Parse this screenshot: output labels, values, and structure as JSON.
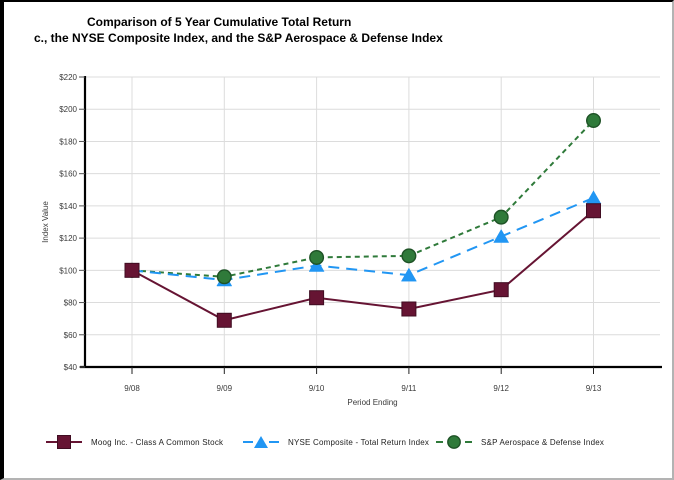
{
  "page": {
    "title_line1": "Comparison of 5 Year Cumulative Total Return",
    "title_line2": "c., the NYSE Composite Index, and the S&P Aerospace & Defense Index"
  },
  "chart_data": {
    "type": "line",
    "title": "Comparison of 5 Year Cumulative Total Return",
    "subtitle": "c., the NYSE Composite Index, and the S&P Aerospace & Defense Index",
    "categories": [
      "9/08",
      "9/09",
      "9/10",
      "9/11",
      "9/12",
      "9/13"
    ],
    "series": [
      {
        "name": "Moog Inc. - Class A Common Stock",
        "marker": "square",
        "line_style": "solid",
        "color": "#661433",
        "edge_color": "#400d22",
        "values": [
          100,
          69,
          83,
          76,
          88,
          137
        ]
      },
      {
        "name": "NYSE Composite - Total Return Index",
        "marker": "triangle",
        "line_style": "dash-long",
        "color": "#2196f3",
        "edge_color": "#1272bd",
        "values": [
          100,
          94,
          103,
          97,
          121,
          145
        ]
      },
      {
        "name": "S&P Aerospace & Defense Index",
        "marker": "circle",
        "line_style": "dash-short",
        "color": "#2f7a3a",
        "edge_color": "#1e5226",
        "values": [
          100,
          96,
          108,
          109,
          133,
          193
        ]
      }
    ],
    "xlabel": "Period Ending",
    "ylabel": "Index Value",
    "ylim": [
      40,
      220
    ],
    "ytick_step": 20,
    "ytick_prefix": "$",
    "grid": true,
    "legend_position": "bottom"
  }
}
